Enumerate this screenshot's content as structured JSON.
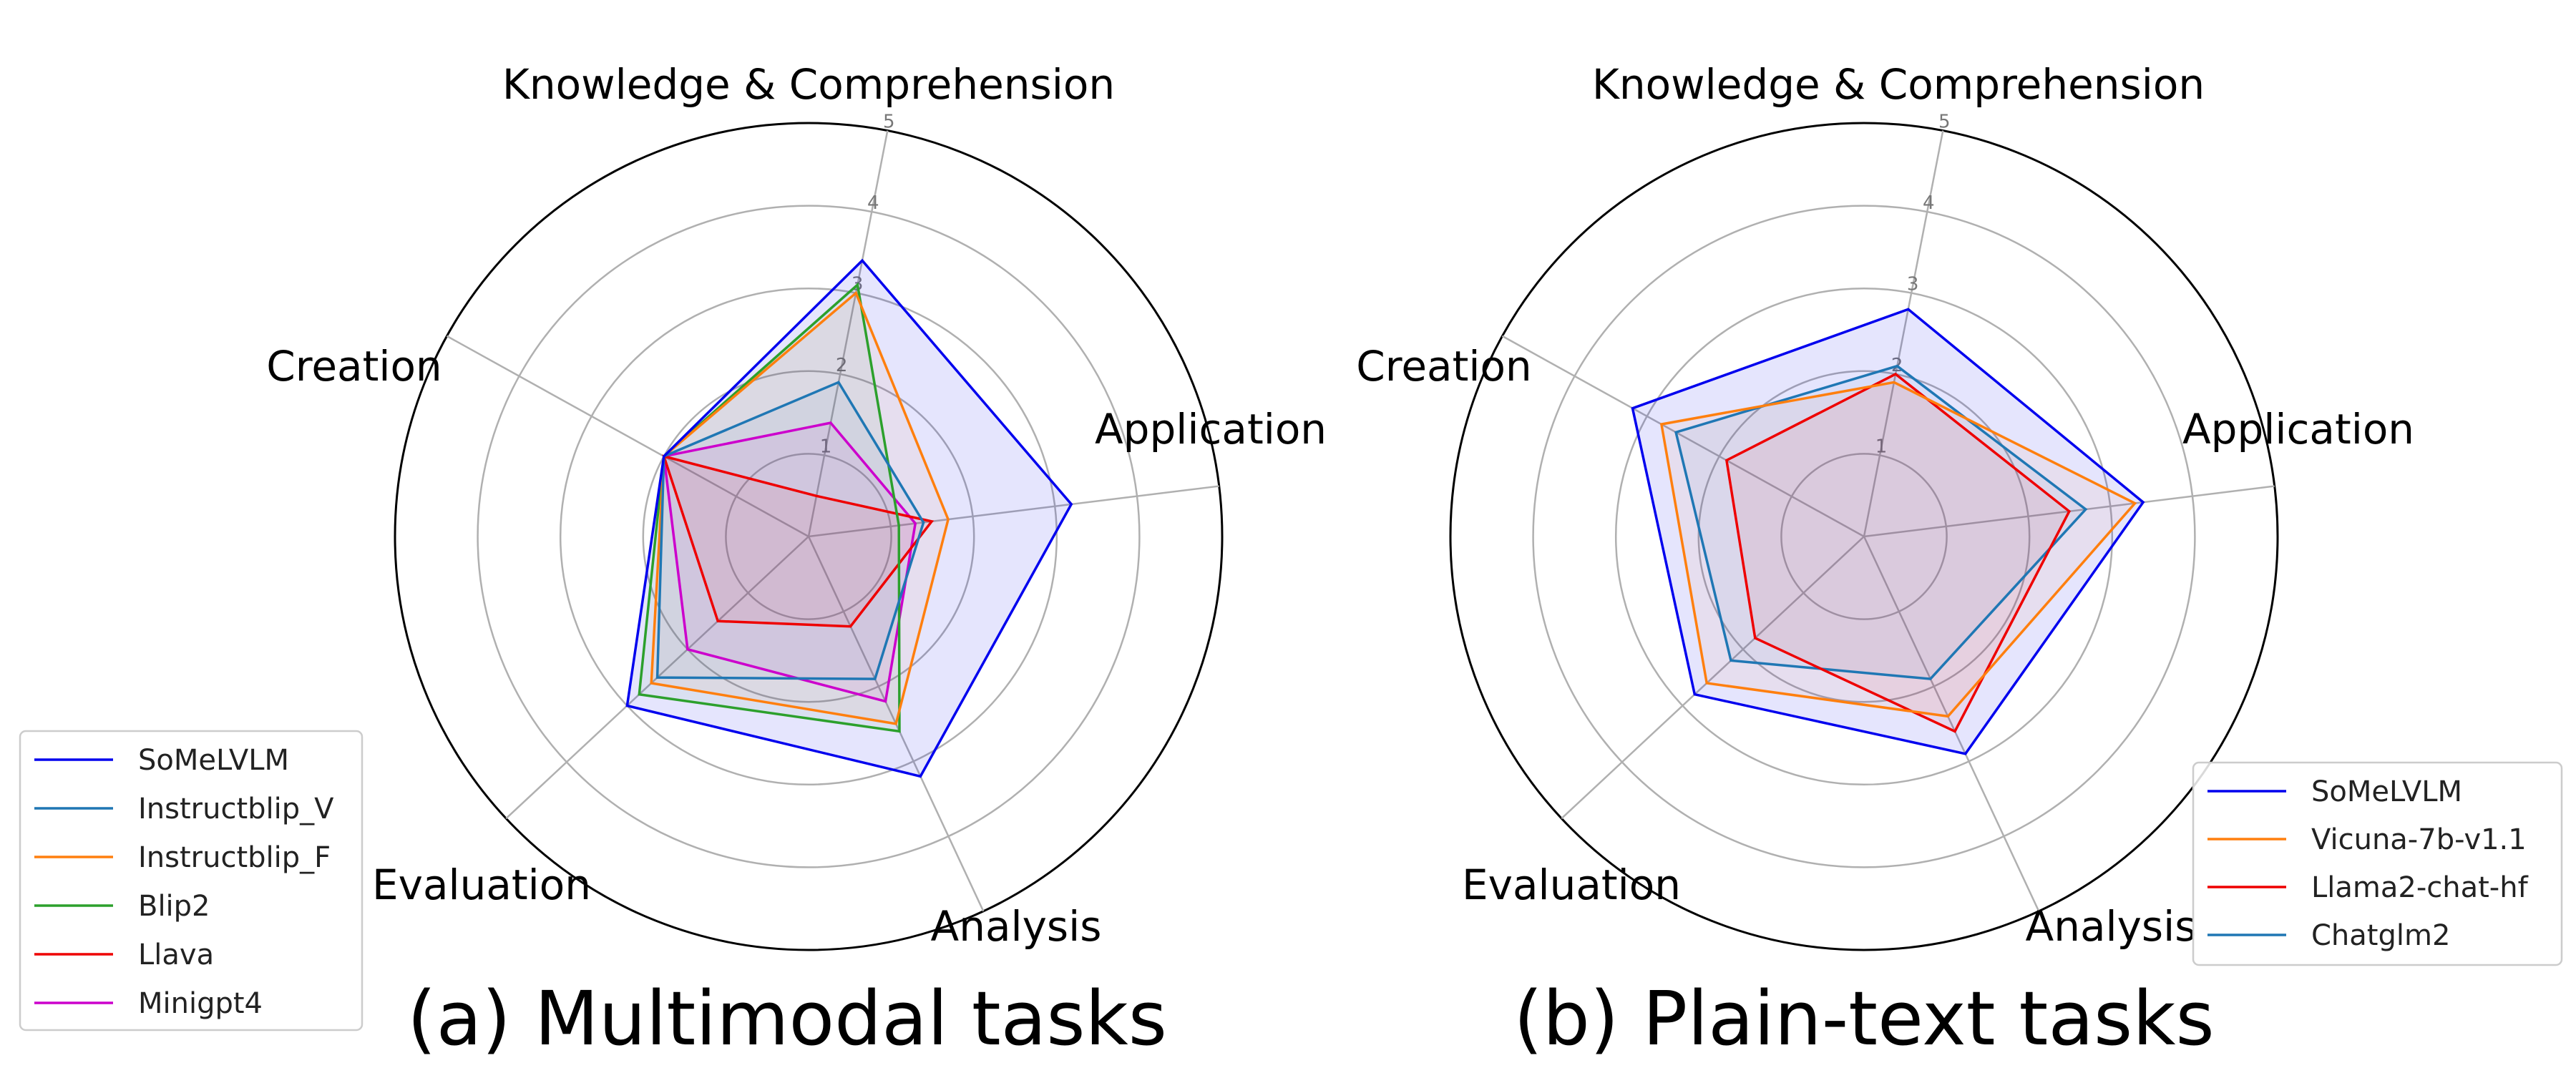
{
  "chart_data": [
    {
      "type": "radar",
      "caption": "(a) Multimodal tasks",
      "axes": [
        "Knowledge & Comprehension",
        "Application",
        "Analysis",
        "Evaluation",
        "Creation"
      ],
      "rmax": 5,
      "ticks": [
        1,
        2,
        3,
        4,
        5
      ],
      "grid": true,
      "legend_position": "lower-left",
      "series": [
        {
          "name": "SoMeLVLM",
          "color": "#0000ee",
          "fill": true,
          "values": [
            3.4,
            3.2,
            3.2,
            3.0,
            2.0
          ]
        },
        {
          "name": "Instructblip_V",
          "color": "#1f77b4",
          "values": [
            1.9,
            1.4,
            1.9,
            2.5,
            2.0
          ]
        },
        {
          "name": "Instructblip_F",
          "color": "#ff7f0e",
          "values": [
            3.0,
            1.7,
            2.5,
            2.6,
            2.0
          ]
        },
        {
          "name": "Blip2",
          "color": "#2ca02c",
          "values": [
            3.1,
            1.1,
            2.6,
            2.8,
            2.0
          ]
        },
        {
          "name": "Llava",
          "color": "#ee0000",
          "values": [
            0.5,
            1.5,
            1.2,
            1.5,
            2.0
          ]
        },
        {
          "name": "Minigpt4",
          "color": "#cc00cc",
          "values": [
            1.4,
            1.3,
            2.2,
            2.0,
            2.0
          ]
        }
      ]
    },
    {
      "type": "radar",
      "caption": "(b) Plain-text tasks",
      "axes": [
        "Knowledge & Comprehension",
        "Application",
        "Analysis",
        "Evaluation",
        "Creation"
      ],
      "rmax": 5,
      "ticks": [
        1,
        2,
        3,
        4,
        5
      ],
      "grid": true,
      "legend_position": "lower-right",
      "series": [
        {
          "name": "SoMeLVLM",
          "color": "#0000ee",
          "fill": true,
          "values": [
            2.8,
            3.4,
            2.9,
            2.8,
            3.2
          ]
        },
        {
          "name": "Vicuna-7b-v1.1",
          "color": "#ff7f0e",
          "values": [
            1.9,
            3.3,
            2.4,
            2.6,
            2.8
          ]
        },
        {
          "name": "Llama2-chat-hf",
          "color": "#ee0000",
          "values": [
            2.0,
            2.5,
            2.6,
            1.8,
            1.9
          ]
        },
        {
          "name": "Chatglm2",
          "color": "#1f77b4",
          "values": [
            2.1,
            2.7,
            1.9,
            2.2,
            2.6
          ]
        }
      ]
    }
  ]
}
